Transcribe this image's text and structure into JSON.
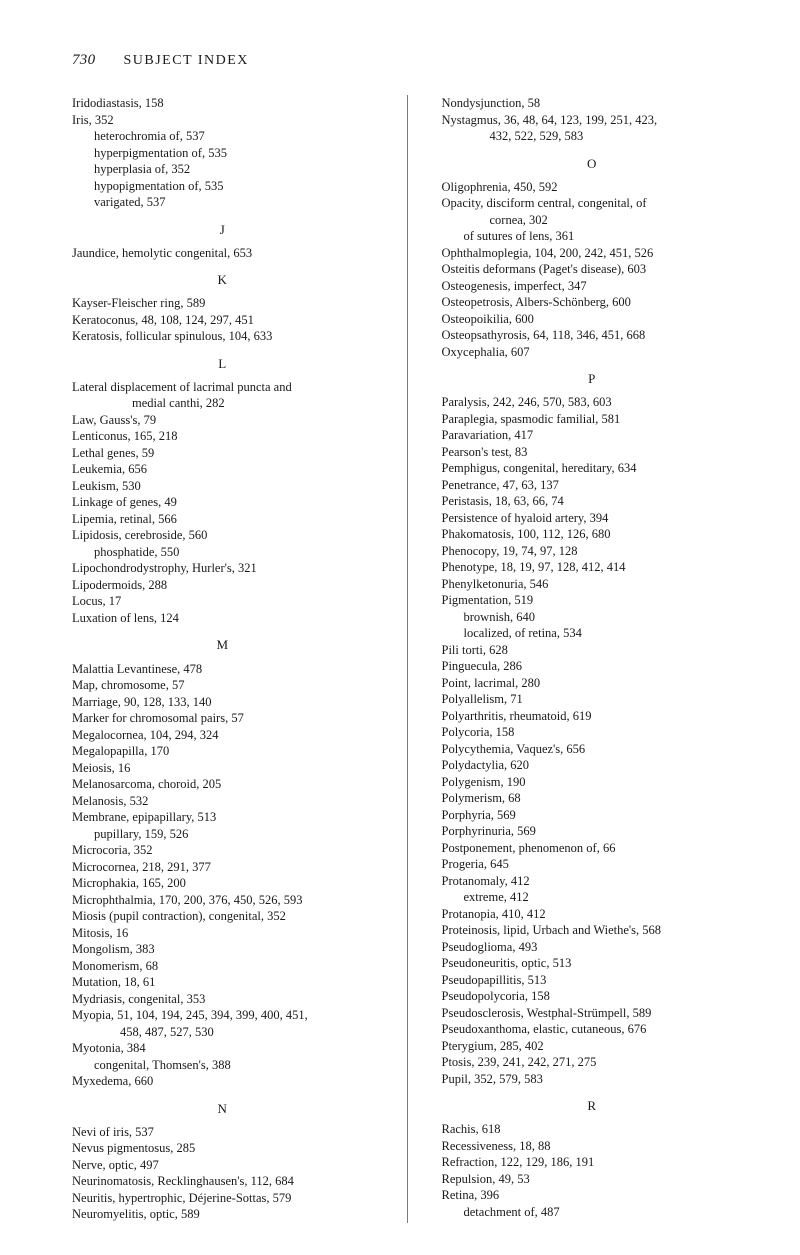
{
  "page": {
    "number": "730",
    "header": "SUBJECT INDEX"
  },
  "left_column": [
    {
      "t": "entry",
      "text": "Iridodiastasis, 158"
    },
    {
      "t": "entry",
      "text": "Iris, 352"
    },
    {
      "t": "indent",
      "text": "heterochromia of, 537"
    },
    {
      "t": "indent",
      "text": "hyperpigmentation of, 535"
    },
    {
      "t": "indent",
      "text": "hyperplasia of, 352"
    },
    {
      "t": "indent",
      "text": "hypopigmentation of, 535"
    },
    {
      "t": "indent",
      "text": "varigated, 537"
    },
    {
      "t": "letter",
      "text": "J"
    },
    {
      "t": "entry",
      "text": "Jaundice, hemolytic congenital, 653"
    },
    {
      "t": "letter",
      "text": "K"
    },
    {
      "t": "entry",
      "text": "Kayser-Fleischer ring, 589"
    },
    {
      "t": "entry",
      "text": "Keratoconus, 48, 108, 124, 297, 451"
    },
    {
      "t": "entry",
      "text": "Keratosis, follicular spinulous, 104, 633"
    },
    {
      "t": "letter",
      "text": "L"
    },
    {
      "t": "entry",
      "text": "Lateral displacement of lacrimal puncta and"
    },
    {
      "t": "indent2",
      "text": "medial canthi, 282"
    },
    {
      "t": "entry",
      "text": "Law, Gauss's, 79"
    },
    {
      "t": "entry",
      "text": "Lenticonus, 165, 218"
    },
    {
      "t": "entry",
      "text": "Lethal genes, 59"
    },
    {
      "t": "entry",
      "text": "Leukemia, 656"
    },
    {
      "t": "entry",
      "text": "Leukism, 530"
    },
    {
      "t": "entry",
      "text": "Linkage of genes, 49"
    },
    {
      "t": "entry",
      "text": "Lipemia, retinal, 566"
    },
    {
      "t": "entry",
      "text": "Lipidosis, cerebroside, 560"
    },
    {
      "t": "indent",
      "text": "phosphatide, 550"
    },
    {
      "t": "entry",
      "text": "Lipochondrodystrophy, Hurler's, 321"
    },
    {
      "t": "entry",
      "text": "Lipodermoids, 288"
    },
    {
      "t": "entry",
      "text": "Locus, 17"
    },
    {
      "t": "entry",
      "text": "Luxation of lens, 124"
    },
    {
      "t": "letter",
      "text": "M"
    },
    {
      "t": "entry",
      "text": "Malattia Levantinese, 478"
    },
    {
      "t": "entry",
      "text": "Map, chromosome, 57"
    },
    {
      "t": "entry",
      "text": "Marriage, 90, 128, 133, 140"
    },
    {
      "t": "entry",
      "text": "Marker for chromosomal pairs, 57"
    },
    {
      "t": "entry",
      "text": "Megalocornea, 104, 294, 324"
    },
    {
      "t": "entry",
      "text": "Megalopapilla, 170"
    },
    {
      "t": "entry",
      "text": "Meiosis, 16"
    },
    {
      "t": "entry",
      "text": "Melanosarcoma, choroid, 205"
    },
    {
      "t": "entry",
      "text": "Melanosis, 532"
    },
    {
      "t": "entry",
      "text": "Membrane, epipapillary, 513"
    },
    {
      "t": "indent",
      "text": "pupillary, 159, 526"
    },
    {
      "t": "entry",
      "text": "Microcoria, 352"
    },
    {
      "t": "entry",
      "text": "Microcornea, 218, 291, 377"
    },
    {
      "t": "entry",
      "text": "Microphakia, 165, 200"
    },
    {
      "t": "entry",
      "text": "Microphthalmia, 170, 200, 376, 450, 526, 593"
    },
    {
      "t": "entry",
      "text": "Miosis (pupil contraction), congenital, 352"
    },
    {
      "t": "entry",
      "text": "Mitosis, 16"
    },
    {
      "t": "entry",
      "text": "Mongolism, 383"
    },
    {
      "t": "entry",
      "text": "Monomerism, 68"
    },
    {
      "t": "entry",
      "text": "Mutation, 18, 61"
    },
    {
      "t": "entry",
      "text": "Mydriasis, congenital, 353"
    },
    {
      "t": "entry",
      "text": "Myopia, 51, 104, 194, 245, 394, 399, 400, 451,"
    },
    {
      "t": "cont",
      "text": "458, 487, 527, 530"
    },
    {
      "t": "entry",
      "text": "Myotonia, 384"
    },
    {
      "t": "indent",
      "text": "congenital, Thomsen's, 388"
    },
    {
      "t": "entry",
      "text": "Myxedema, 660"
    },
    {
      "t": "letter",
      "text": "N"
    },
    {
      "t": "entry",
      "text": "Nevi of iris, 537"
    },
    {
      "t": "entry",
      "text": "Nevus pigmentosus, 285"
    },
    {
      "t": "entry",
      "text": "Nerve, optic, 497"
    },
    {
      "t": "entry",
      "text": "Neurinomatosis, Recklinghausen's, 112, 684"
    },
    {
      "t": "entry",
      "text": "Neuritis, hypertrophic, Déjerine-Sottas, 579"
    },
    {
      "t": "entry",
      "text": "Neuromyelitis, optic, 589"
    }
  ],
  "right_column": [
    {
      "t": "entry",
      "text": "Nondysjunction, 58"
    },
    {
      "t": "entry",
      "text": "Nystagmus, 36, 48, 64, 123, 199, 251, 423,"
    },
    {
      "t": "cont",
      "text": "432, 522, 529, 583"
    },
    {
      "t": "letter",
      "text": "O"
    },
    {
      "t": "entry",
      "text": "Oligophrenia, 450, 592"
    },
    {
      "t": "entry",
      "text": "Opacity, disciform central, congenital, of"
    },
    {
      "t": "cont",
      "text": "cornea, 302"
    },
    {
      "t": "indent",
      "text": "of sutures of lens, 361"
    },
    {
      "t": "entry",
      "text": "Ophthalmoplegia, 104, 200, 242, 451, 526"
    },
    {
      "t": "entry",
      "text": "Osteitis deformans (Paget's disease), 603"
    },
    {
      "t": "entry",
      "text": "Osteogenesis, imperfect, 347"
    },
    {
      "t": "entry",
      "text": "Osteopetrosis, Albers-Schönberg, 600"
    },
    {
      "t": "entry",
      "text": "Osteopoikilia, 600"
    },
    {
      "t": "entry",
      "text": "Osteopsathyrosis, 64, 118, 346, 451, 668"
    },
    {
      "t": "entry",
      "text": "Oxycephalia, 607"
    },
    {
      "t": "letter",
      "text": "P"
    },
    {
      "t": "entry",
      "text": "Paralysis, 242, 246, 570, 583, 603"
    },
    {
      "t": "entry",
      "text": "Paraplegia, spasmodic familial, 581"
    },
    {
      "t": "entry",
      "text": "Paravariation, 417"
    },
    {
      "t": "entry",
      "text": "Pearson's test, 83"
    },
    {
      "t": "entry",
      "text": "Pemphigus, congenital, hereditary, 634"
    },
    {
      "t": "entry",
      "text": "Penetrance, 47, 63, 137"
    },
    {
      "t": "entry",
      "text": "Peristasis, 18, 63, 66, 74"
    },
    {
      "t": "entry",
      "text": "Persistence of hyaloid artery, 394"
    },
    {
      "t": "entry",
      "text": "Phakomatosis, 100, 112, 126, 680"
    },
    {
      "t": "entry",
      "text": "Phenocopy, 19, 74, 97, 128"
    },
    {
      "t": "entry",
      "text": "Phenotype, 18, 19, 97, 128, 412, 414"
    },
    {
      "t": "entry",
      "text": "Phenylketonuria, 546"
    },
    {
      "t": "entry",
      "text": "Pigmentation, 519"
    },
    {
      "t": "indent",
      "text": "brownish, 640"
    },
    {
      "t": "indent",
      "text": "localized, of retina, 534"
    },
    {
      "t": "entry",
      "text": "Pili torti, 628"
    },
    {
      "t": "entry",
      "text": "Pinguecula, 286"
    },
    {
      "t": "entry",
      "text": "Point, lacrimal, 280"
    },
    {
      "t": "entry",
      "text": "Polyallelism, 71"
    },
    {
      "t": "entry",
      "text": "Polyarthritis, rheumatoid, 619"
    },
    {
      "t": "entry",
      "text": "Polycoria, 158"
    },
    {
      "t": "entry",
      "text": "Polycythemia, Vaquez's, 656"
    },
    {
      "t": "entry",
      "text": "Polydactylia, 620"
    },
    {
      "t": "entry",
      "text": "Polygenism, 190"
    },
    {
      "t": "entry",
      "text": "Polymerism, 68"
    },
    {
      "t": "entry",
      "text": "Porphyria, 569"
    },
    {
      "t": "entry",
      "text": "Porphyrinuria, 569"
    },
    {
      "t": "entry",
      "text": "Postponement, phenomenon of, 66"
    },
    {
      "t": "entry",
      "text": "Progeria, 645"
    },
    {
      "t": "entry",
      "text": "Protanomaly, 412"
    },
    {
      "t": "indent",
      "text": "extreme, 412"
    },
    {
      "t": "entry",
      "text": "Protanopia, 410, 412"
    },
    {
      "t": "entry",
      "text": "Proteinosis, lipid, Urbach and Wiethe's, 568"
    },
    {
      "t": "entry",
      "text": "Pseudoglioma, 493"
    },
    {
      "t": "entry",
      "text": "Pseudoneuritis, optic, 513"
    },
    {
      "t": "entry",
      "text": "Pseudopapillitis, 513"
    },
    {
      "t": "entry",
      "text": "Pseudopolycoria, 158"
    },
    {
      "t": "entry",
      "text": "Pseudosclerosis, Westphal-Strümpell, 589"
    },
    {
      "t": "entry",
      "text": "Pseudoxanthoma, elastic, cutaneous, 676"
    },
    {
      "t": "entry",
      "text": "Pterygium, 285, 402"
    },
    {
      "t": "entry",
      "text": "Ptosis, 239, 241, 242, 271, 275"
    },
    {
      "t": "entry",
      "text": "Pupil, 352, 579, 583"
    },
    {
      "t": "letter",
      "text": "R"
    },
    {
      "t": "entry",
      "text": "Rachis, 618"
    },
    {
      "t": "entry",
      "text": "Recessiveness, 18, 88"
    },
    {
      "t": "entry",
      "text": "Refraction, 122, 129, 186, 191"
    },
    {
      "t": "entry",
      "text": "Repulsion, 49, 53"
    },
    {
      "t": "entry",
      "text": "Retina, 396"
    },
    {
      "t": "indent",
      "text": "detachment of, 487"
    }
  ]
}
